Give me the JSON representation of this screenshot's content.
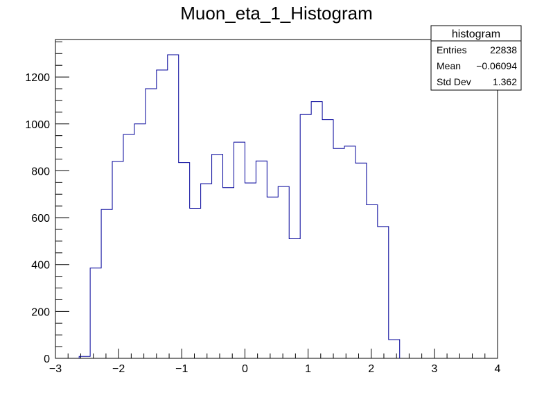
{
  "chart_data": {
    "type": "histogram",
    "title": "Muon_eta_1_Histogram",
    "xlim": [
      -3,
      4
    ],
    "ylim": [
      0,
      1360
    ],
    "grid": false,
    "bin_width": 0.175,
    "bin_edges_start": -2.625,
    "bin_values": [
      8,
      385,
      635,
      840,
      955,
      1000,
      1150,
      1230,
      1295,
      835,
      640,
      745,
      870,
      728,
      922,
      748,
      842,
      688,
      733,
      510,
      1040,
      1095,
      1018,
      895,
      905,
      833,
      655,
      562,
      80
    ],
    "line_color": "#000099",
    "x_ticks": [
      -3,
      -2,
      -1,
      0,
      1,
      2,
      3,
      4
    ],
    "x_tick_labels": [
      "−3",
      "−2",
      "−1",
      "0",
      "1",
      "2",
      "3",
      "4"
    ],
    "y_ticks": [
      0,
      200,
      400,
      600,
      800,
      1000,
      1200
    ],
    "y_tick_labels": [
      "0",
      "200",
      "400",
      "600",
      "800",
      "1000",
      "1200"
    ],
    "stats_box": {
      "title": "histogram",
      "rows": [
        {
          "label": "Entries",
          "value": "22838"
        },
        {
          "label": "Mean",
          "value": "−0.06094"
        },
        {
          "label": "Std Dev",
          "value": "1.362"
        }
      ]
    }
  }
}
